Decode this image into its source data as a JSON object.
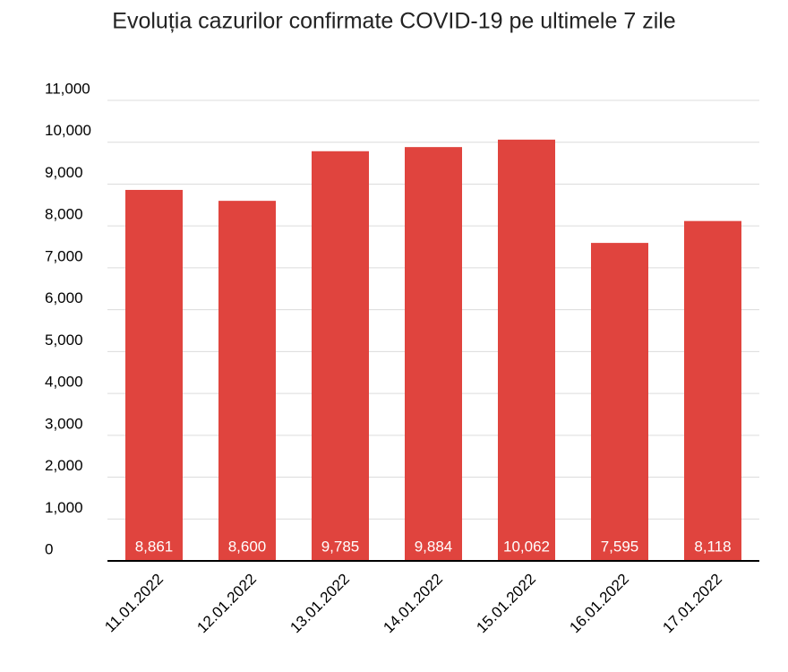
{
  "chart_data": {
    "type": "bar",
    "title": "Evoluția cazurilor confirmate COVID-19 pe ultimele 7 zile",
    "categories": [
      "11.01.2022",
      "12.01.2022",
      "13.01.2022",
      "14.01.2022",
      "15.01.2022",
      "16.01.2022",
      "17.01.2022"
    ],
    "values": [
      8861,
      8600,
      9785,
      9884,
      10062,
      7595,
      8118
    ],
    "value_labels": [
      "8,861",
      "8,600",
      "9,785",
      "9,884",
      "10,062",
      "7,595",
      "8,118"
    ],
    "color": "#e0443e",
    "ylim": [
      0,
      11000
    ],
    "yticks": [
      0,
      {
        "value": 1000,
        "label": "1,000"
      },
      {
        "value": 2000,
        "label": "2,000"
      },
      {
        "value": 3000,
        "label": "3,000"
      },
      {
        "value": 4000,
        "label": "4,000"
      },
      {
        "value": 5000,
        "label": "5,000"
      },
      {
        "value": 6000,
        "label": "6,000"
      },
      {
        "value": 7000,
        "label": "7,000"
      },
      {
        "value": 8000,
        "label": "8,000"
      },
      {
        "value": 9000,
        "label": "9,000"
      },
      {
        "value": 10000,
        "label": "10,000"
      },
      {
        "value": 11000,
        "label": "11,000"
      }
    ],
    "grid": true
  }
}
